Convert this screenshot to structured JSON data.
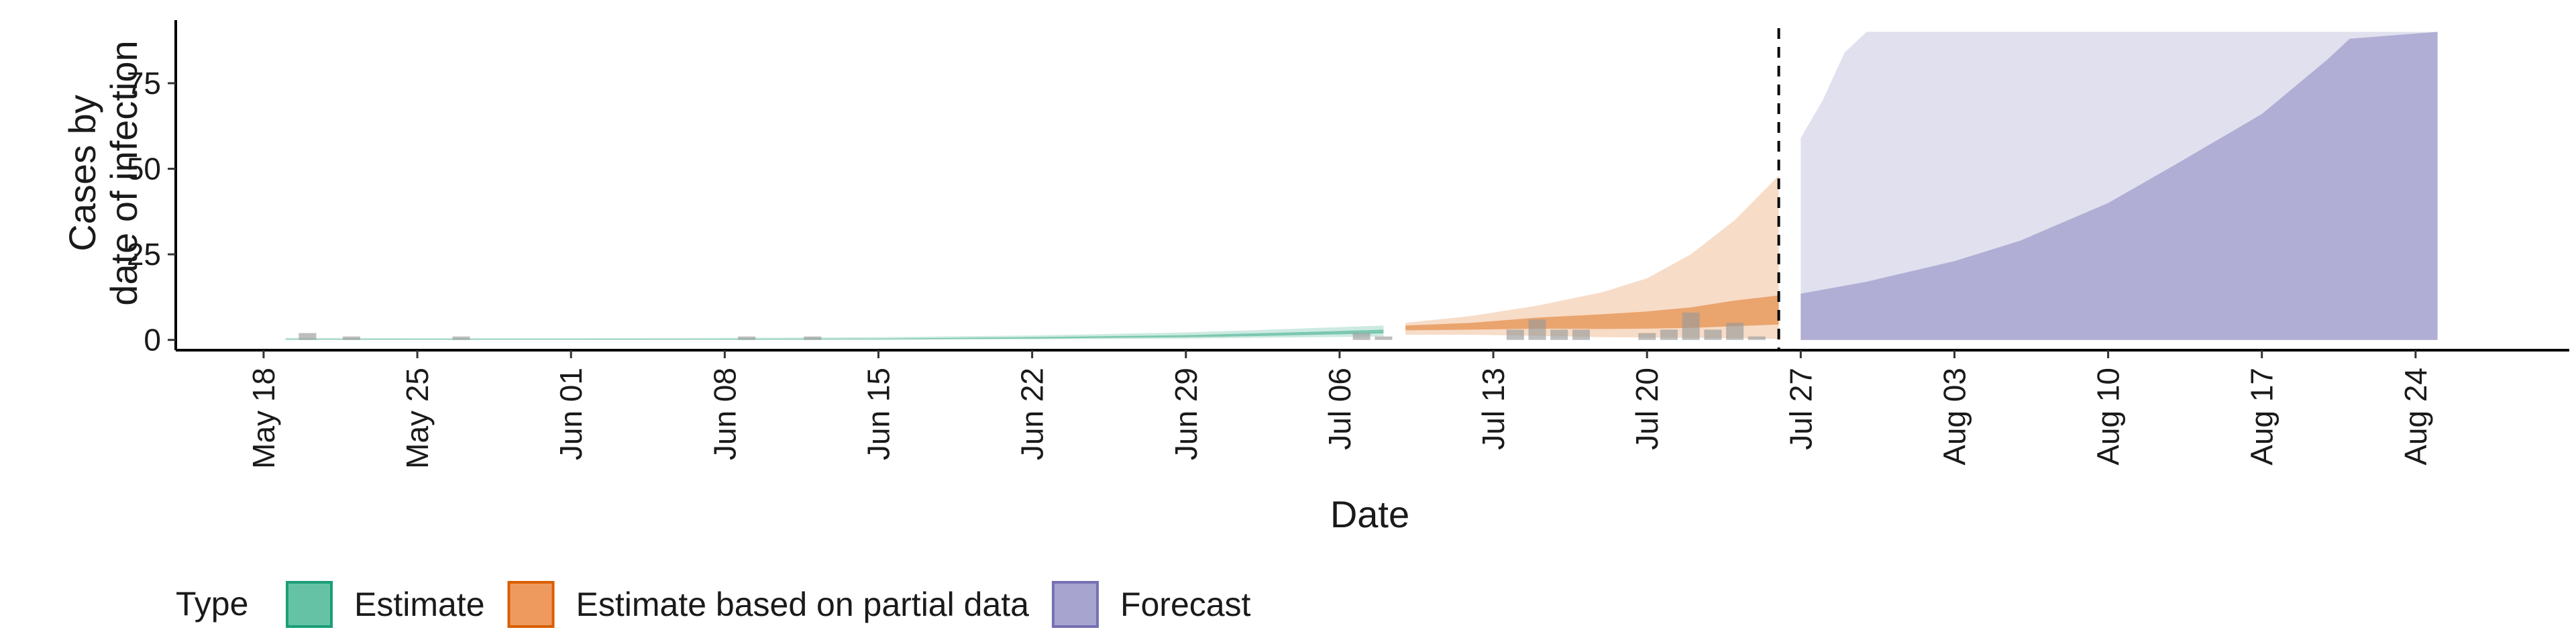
{
  "chart_data": {
    "type": "area",
    "xlabel": "Date",
    "ylabel_lines": [
      "Cases by",
      "date of infection"
    ],
    "x_range": [
      "2020-05-14",
      "2020-08-31"
    ],
    "ylim": [
      -3,
      95
    ],
    "yticks": [
      0,
      25,
      50,
      75
    ],
    "xticks": [
      {
        "date": "2020-05-18",
        "label": "May 18"
      },
      {
        "date": "2020-05-25",
        "label": "May 25"
      },
      {
        "date": "2020-06-01",
        "label": "Jun 01"
      },
      {
        "date": "2020-06-08",
        "label": "Jun 08"
      },
      {
        "date": "2020-06-15",
        "label": "Jun 15"
      },
      {
        "date": "2020-06-22",
        "label": "Jun 22"
      },
      {
        "date": "2020-06-29",
        "label": "Jun 29"
      },
      {
        "date": "2020-07-06",
        "label": "Jul 06"
      },
      {
        "date": "2020-07-13",
        "label": "Jul 13"
      },
      {
        "date": "2020-07-20",
        "label": "Jul 20"
      },
      {
        "date": "2020-07-27",
        "label": "Jul 27"
      },
      {
        "date": "2020-08-03",
        "label": "Aug 03"
      },
      {
        "date": "2020-08-10",
        "label": "Aug 10"
      },
      {
        "date": "2020-08-17",
        "label": "Aug 17"
      },
      {
        "date": "2020-08-24",
        "label": "Aug 24"
      }
    ],
    "cutoff_date": "2020-07-26",
    "grid": false,
    "legend": {
      "title": "Type",
      "position": "bottom",
      "items": [
        {
          "label": "Estimate",
          "fill": "#66c2a5",
          "stroke": "#1b9e77"
        },
        {
          "label": "Estimate based on partial data",
          "fill": "#ee9a5f",
          "stroke": "#d95f02"
        },
        {
          "label": "Forecast",
          "fill": "#a7a4d0",
          "stroke": "#7570b3"
        }
      ]
    },
    "colors": {
      "estimate": "#1b9e77",
      "partial": "#d95f02",
      "forecast": "#7570b3",
      "observed": "#9a9a9a"
    },
    "observed_cases": [
      {
        "date": "2020-05-20",
        "value": 2
      },
      {
        "date": "2020-05-22",
        "value": 1
      },
      {
        "date": "2020-05-27",
        "value": 1
      },
      {
        "date": "2020-06-09",
        "value": 1
      },
      {
        "date": "2020-06-12",
        "value": 1
      },
      {
        "date": "2020-07-07",
        "value": 2
      },
      {
        "date": "2020-07-08",
        "value": 1
      },
      {
        "date": "2020-07-14",
        "value": 3
      },
      {
        "date": "2020-07-15",
        "value": 6
      },
      {
        "date": "2020-07-16",
        "value": 3
      },
      {
        "date": "2020-07-17",
        "value": 3
      },
      {
        "date": "2020-07-20",
        "value": 2
      },
      {
        "date": "2020-07-21",
        "value": 3
      },
      {
        "date": "2020-07-22",
        "value": 8
      },
      {
        "date": "2020-07-23",
        "value": 3
      },
      {
        "date": "2020-07-24",
        "value": 5
      },
      {
        "date": "2020-07-25",
        "value": 1
      }
    ],
    "series": [
      {
        "name": "Estimate",
        "outer": {
          "x": [
            "2020-05-19",
            "2020-05-25",
            "2020-06-01",
            "2020-06-08",
            "2020-06-15",
            "2020-06-22",
            "2020-06-29",
            "2020-07-02",
            "2020-07-05",
            "2020-07-08"
          ],
          "lower": [
            0,
            0,
            0,
            0,
            0,
            0.2,
            0.4,
            0.6,
            0.8,
            1.0
          ],
          "upper": [
            0.6,
            0.5,
            0.5,
            0.6,
            0.8,
            1.3,
            2.2,
            2.8,
            3.5,
            4.2
          ]
        },
        "inner": {
          "x": [
            "2020-05-19",
            "2020-05-25",
            "2020-06-01",
            "2020-06-08",
            "2020-06-15",
            "2020-06-22",
            "2020-06-29",
            "2020-07-02",
            "2020-07-05",
            "2020-07-08"
          ],
          "lower": [
            0.1,
            0.1,
            0.1,
            0.1,
            0.2,
            0.4,
            0.8,
            1.1,
            1.5,
            1.9
          ],
          "upper": [
            0.3,
            0.3,
            0.3,
            0.3,
            0.4,
            0.8,
            1.4,
            1.9,
            2.4,
            3.0
          ]
        }
      },
      {
        "name": "Estimate based on partial data",
        "outer": {
          "x": [
            "2020-07-09",
            "2020-07-12",
            "2020-07-15",
            "2020-07-18",
            "2020-07-20",
            "2020-07-22",
            "2020-07-24",
            "2020-07-26"
          ],
          "lower": [
            1.5,
            1.5,
            1.2,
            0.8,
            0.7,
            0.6,
            0.5,
            0.3
          ],
          "upper": [
            5,
            7,
            10,
            14,
            18,
            25,
            35,
            48
          ]
        },
        "inner": {
          "x": [
            "2020-07-09",
            "2020-07-12",
            "2020-07-15",
            "2020-07-18",
            "2020-07-20",
            "2020-07-22",
            "2020-07-24",
            "2020-07-26"
          ],
          "lower": [
            2.8,
            3,
            3.3,
            3.2,
            3.3,
            3.5,
            4,
            4.5
          ],
          "upper": [
            4.2,
            5,
            6.5,
            7.5,
            8.3,
            9.5,
            11.5,
            13
          ]
        }
      },
      {
        "name": "Forecast",
        "outer": {
          "x": [
            "2020-07-27",
            "2020-07-28",
            "2020-07-29",
            "2020-07-30",
            "2020-07-31",
            "2020-08-01",
            "2020-08-10",
            "2020-08-20",
            "2020-08-25"
          ],
          "lower": [
            0,
            0,
            0,
            0,
            0,
            0,
            0,
            0,
            0
          ],
          "upper": [
            59,
            70,
            84,
            90,
            90,
            90,
            90,
            90,
            90
          ]
        },
        "inner": {
          "x": [
            "2020-07-27",
            "2020-07-30",
            "2020-08-03",
            "2020-08-06",
            "2020-08-10",
            "2020-08-13",
            "2020-08-17",
            "2020-08-20",
            "2020-08-21",
            "2020-08-25"
          ],
          "lower": [
            0,
            0,
            0,
            0,
            0,
            0,
            0,
            0,
            0,
            0
          ],
          "upper": [
            13.5,
            17,
            23,
            29,
            40,
            51,
            66,
            82,
            88,
            90
          ]
        }
      }
    ]
  }
}
